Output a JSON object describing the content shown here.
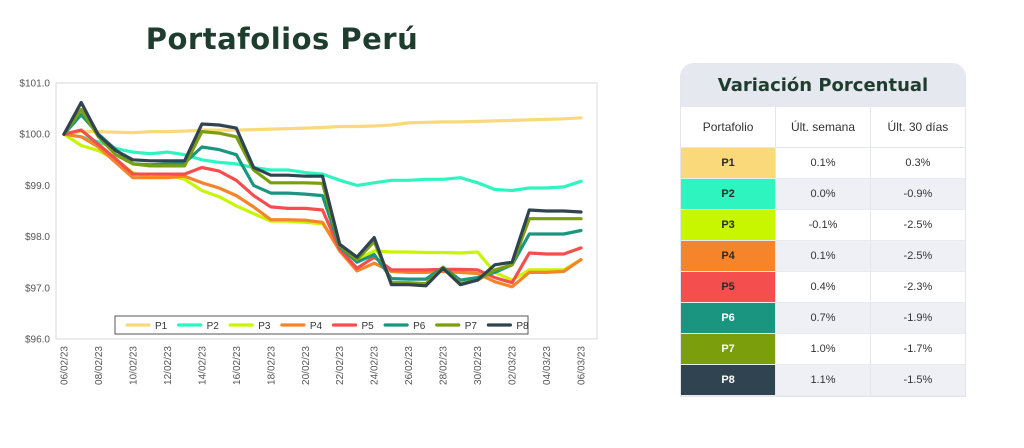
{
  "title": "Portafolios Perú",
  "table": {
    "title": "Variación Porcentual",
    "headers": [
      "Portafolio",
      "Últ. semana",
      "Últ. 30 días"
    ],
    "rows": [
      {
        "name": "P1",
        "week": "0.1%",
        "month": "0.3%",
        "color": "#fad97a",
        "text_color": "#2a2a2a"
      },
      {
        "name": "P2",
        "week": "0.0%",
        "month": "-0.9%",
        "color": "#2ef5c0",
        "text_color": "#2a2a2a"
      },
      {
        "name": "P3",
        "week": "-0.1%",
        "month": "-2.5%",
        "color": "#c8f500",
        "text_color": "#2a2a2a"
      },
      {
        "name": "P4",
        "week": "0.1%",
        "month": "-2.5%",
        "color": "#f5842a",
        "text_color": "#2a2a2a"
      },
      {
        "name": "P5",
        "week": "0.4%",
        "month": "-2.3%",
        "color": "#f54e4e",
        "text_color": "#2a2a2a"
      },
      {
        "name": "P6",
        "week": "0.7%",
        "month": "-1.9%",
        "color": "#1a9680",
        "text_color": "#ffffff"
      },
      {
        "name": "P7",
        "week": "1.0%",
        "month": "-1.7%",
        "color": "#7a9e0c",
        "text_color": "#ffffff"
      },
      {
        "name": "P8",
        "week": "1.1%",
        "month": "-1.5%",
        "color": "#2f4350",
        "text_color": "#ffffff"
      }
    ]
  },
  "chart_data": {
    "type": "line",
    "title": "Portafolios Perú",
    "xlabel": "",
    "ylabel": "",
    "ylim": [
      96.0,
      101.0
    ],
    "y_ticks": [
      "$96.0",
      "$97.0",
      "$98.0",
      "$99.0",
      "$100.0",
      "$101.0"
    ],
    "y_tick_values": [
      96.0,
      97.0,
      98.0,
      99.0,
      100.0,
      101.0
    ],
    "x": [
      "06/02/23",
      "07/02/23",
      "08/02/23",
      "09/02/23",
      "10/02/23",
      "11/02/23",
      "12/02/23",
      "13/02/23",
      "14/02/23",
      "15/02/23",
      "16/02/23",
      "17/02/23",
      "18/02/23",
      "19/02/23",
      "20/02/23",
      "21/02/23",
      "22/02/23",
      "23/02/23",
      "24/02/23",
      "25/02/23",
      "26/02/23",
      "27/02/23",
      "28/02/23",
      "01/03/23",
      "30/02/23",
      "01/03/23",
      "02/03/23",
      "03/03/23",
      "04/03/23",
      "05/03/23",
      "06/03/23"
    ],
    "x_tick_labels": [
      "06/02/23",
      "08/02/23",
      "10/02/23",
      "12/02/23",
      "14/02/23",
      "16/02/23",
      "18/02/23",
      "20/02/23",
      "22/02/23",
      "24/02/23",
      "26/02/23",
      "28/02/23",
      "30/02/23",
      "02/03/23",
      "04/03/23",
      "06/03/23"
    ],
    "grid": false,
    "legend_position": "bottom-inside",
    "series": [
      {
        "name": "P1",
        "color": "#fad97a",
        "values": [
          100.0,
          100.05,
          100.05,
          100.04,
          100.03,
          100.05,
          100.05,
          100.06,
          100.08,
          100.08,
          100.08,
          100.09,
          100.1,
          100.11,
          100.12,
          100.13,
          100.15,
          100.15,
          100.16,
          100.18,
          100.22,
          100.23,
          100.24,
          100.24,
          100.25,
          100.26,
          100.27,
          100.28,
          100.29,
          100.3,
          100.32
        ]
      },
      {
        "name": "P2",
        "color": "#2ef5c0",
        "values": [
          100.0,
          99.95,
          99.85,
          99.72,
          99.65,
          99.62,
          99.65,
          99.6,
          99.5,
          99.45,
          99.42,
          99.35,
          99.3,
          99.3,
          99.25,
          99.22,
          99.1,
          99.0,
          99.05,
          99.1,
          99.1,
          99.12,
          99.12,
          99.15,
          99.05,
          98.92,
          98.9,
          98.95,
          98.95,
          98.97,
          99.08
        ]
      },
      {
        "name": "P3",
        "color": "#c8f500",
        "values": [
          100.0,
          99.78,
          99.68,
          99.5,
          99.25,
          99.15,
          99.2,
          99.12,
          98.9,
          98.78,
          98.6,
          98.45,
          98.3,
          98.3,
          98.28,
          98.25,
          97.8,
          97.55,
          97.72,
          97.7,
          97.7,
          97.69,
          97.69,
          97.68,
          97.7,
          97.3,
          97.15,
          97.35,
          97.35,
          97.35,
          97.55
        ]
      },
      {
        "name": "P4",
        "color": "#f5842a",
        "values": [
          100.0,
          99.95,
          99.75,
          99.45,
          99.15,
          99.15,
          99.15,
          99.18,
          99.05,
          98.95,
          98.8,
          98.58,
          98.33,
          98.33,
          98.32,
          98.28,
          97.72,
          97.33,
          97.48,
          97.32,
          97.3,
          97.3,
          97.32,
          97.3,
          97.28,
          97.12,
          97.02,
          97.3,
          97.3,
          97.32,
          97.55
        ]
      },
      {
        "name": "P5",
        "color": "#f54e4e",
        "values": [
          100.0,
          100.08,
          99.8,
          99.52,
          99.22,
          99.22,
          99.22,
          99.22,
          99.35,
          99.28,
          99.1,
          98.8,
          98.58,
          98.55,
          98.55,
          98.52,
          97.75,
          97.38,
          97.6,
          97.35,
          97.35,
          97.35,
          97.36,
          97.36,
          97.35,
          97.2,
          97.1,
          97.68,
          97.66,
          97.66,
          97.78
        ]
      },
      {
        "name": "P6",
        "color": "#1a9680",
        "values": [
          100.0,
          100.38,
          100.0,
          99.7,
          99.42,
          99.4,
          99.42,
          99.44,
          99.75,
          99.7,
          99.6,
          99.0,
          98.85,
          98.85,
          98.83,
          98.8,
          97.8,
          97.5,
          97.65,
          97.18,
          97.17,
          97.17,
          97.4,
          97.15,
          97.2,
          97.3,
          97.45,
          98.05,
          98.05,
          98.05,
          98.12
        ]
      },
      {
        "name": "P7",
        "color": "#7a9e0c",
        "values": [
          100.0,
          100.48,
          99.95,
          99.6,
          99.42,
          99.38,
          99.38,
          99.38,
          100.05,
          100.02,
          99.95,
          99.3,
          99.05,
          99.05,
          99.05,
          99.04,
          97.82,
          97.55,
          97.9,
          97.1,
          97.1,
          97.08,
          97.4,
          97.08,
          97.15,
          97.35,
          97.45,
          98.35,
          98.35,
          98.35,
          98.35
        ]
      },
      {
        "name": "P8",
        "color": "#2f4350",
        "values": [
          100.0,
          100.62,
          99.98,
          99.68,
          99.5,
          99.48,
          99.48,
          99.48,
          100.2,
          100.18,
          100.12,
          99.35,
          99.2,
          99.2,
          99.18,
          99.18,
          97.85,
          97.6,
          97.98,
          97.06,
          97.06,
          97.04,
          97.38,
          97.06,
          97.15,
          97.45,
          97.5,
          98.52,
          98.5,
          98.5,
          98.48
        ]
      }
    ]
  }
}
